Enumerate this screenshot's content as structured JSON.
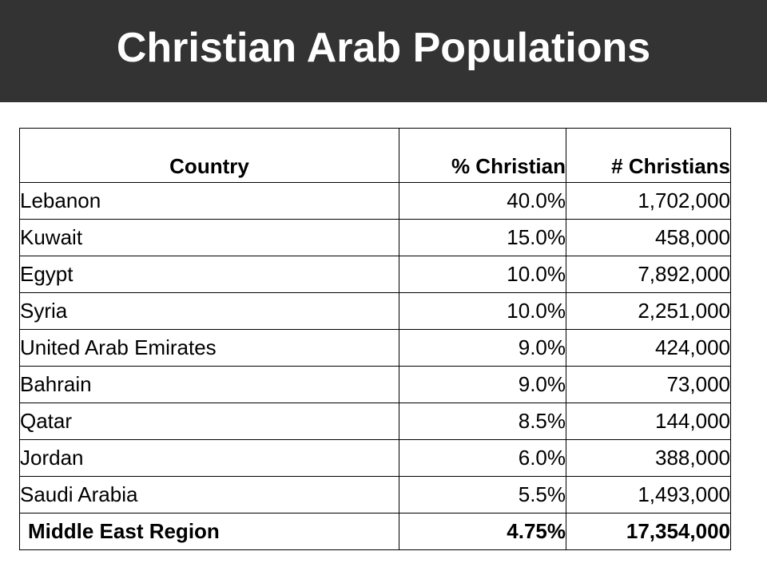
{
  "title": "Christian Arab Populations",
  "table": {
    "headers": [
      "Country",
      "% Christian",
      "# Christians"
    ],
    "rows": [
      {
        "country": "Lebanon",
        "pct": "40.0%",
        "num": "1,702,000"
      },
      {
        "country": "Kuwait",
        "pct": "15.0%",
        "num": "458,000"
      },
      {
        "country": "Egypt",
        "pct": "10.0%",
        "num": "7,892,000"
      },
      {
        "country": "Syria",
        "pct": "10.0%",
        "num": "2,251,000"
      },
      {
        "country": "United Arab Emirates",
        "pct": "9.0%",
        "num": "424,000"
      },
      {
        "country": "Bahrain",
        "pct": "9.0%",
        "num": "73,000"
      },
      {
        "country": "Qatar",
        "pct": "8.5%",
        "num": "144,000"
      },
      {
        "country": "Jordan",
        "pct": "6.0%",
        "num": "388,000"
      },
      {
        "country": "Saudi Arabia",
        "pct": "5.5%",
        "num": "1,493,000"
      }
    ],
    "total": {
      "country": "Middle East Region",
      "pct": "4.75%",
      "num": "17,354,000"
    }
  },
  "colors": {
    "title_bar": "#333333",
    "title_text": "#ffffff",
    "border": "#000000"
  }
}
